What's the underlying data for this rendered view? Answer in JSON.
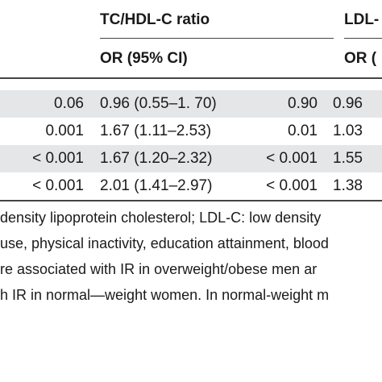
{
  "header": {
    "group1_title": "TC/HDL-C ratio",
    "group2_title": "LDL-",
    "group1_sub": "OR (95% CI)",
    "group2_sub": "OR ("
  },
  "rows": [
    {
      "p1": "0.06",
      "or1": "0.96 (0.55–1. 70)",
      "p2": "0.90",
      "or2": "0.96"
    },
    {
      "p1": "0.001",
      "or1": "1.67 (1.11–2.53)",
      "p2": "0.01",
      "or2": "1.03"
    },
    {
      "p1": "< 0.001",
      "or1": "1.67 (1.20–2.32)",
      "p2": "< 0.001",
      "or2": "1.55"
    },
    {
      "p1": "< 0.001",
      "or1": "2.01 (1.41–2.97)",
      "p2": "< 0.001",
      "or2": "1.38"
    }
  ],
  "footnotes": [
    "density lipoprotein cholesterol; LDL-C: low density",
    "use, physical inactivity, education attainment, blood",
    "re associated with IR in overweight/obese men ar",
    "h IR in normal—weight women. In normal-weight m"
  ]
}
